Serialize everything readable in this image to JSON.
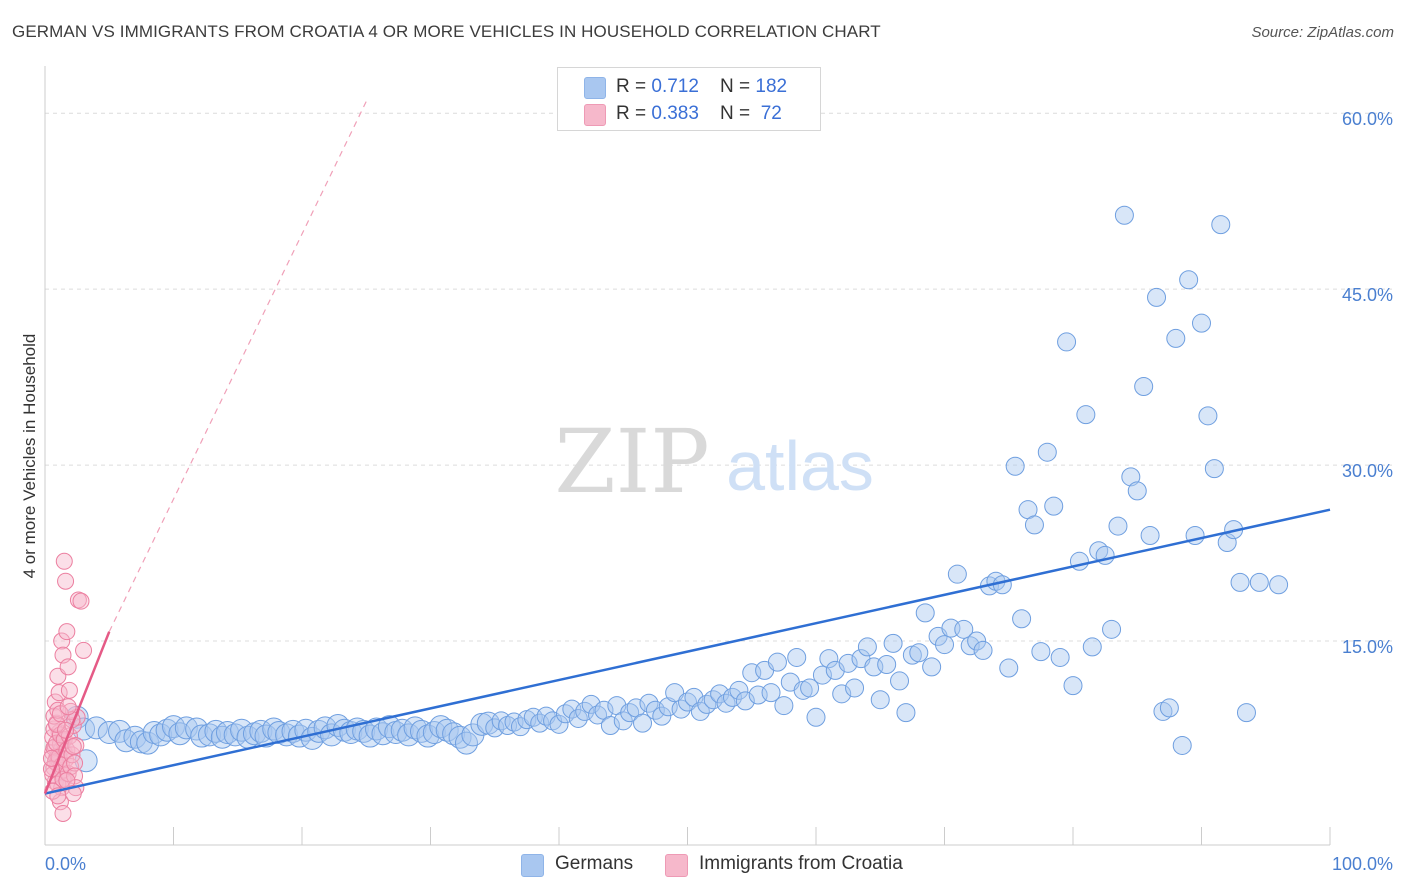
{
  "title": "GERMAN VS IMMIGRANTS FROM CROATIA 4 OR MORE VEHICLES IN HOUSEHOLD CORRELATION CHART",
  "source": "Source: ZipAtlas.com",
  "watermark": {
    "zip": "ZIP",
    "atlas": "atlas"
  },
  "legend": {
    "rows": [
      {
        "r_label": "R = ",
        "r_value": "0.712",
        "n_label": "N = ",
        "n_value": "182",
        "color": "#a9c7f0"
      },
      {
        "r_label": "R = ",
        "r_value": "0.383",
        "n_label": "N = ",
        "n_value": " 72",
        "color": "#f6b8cb"
      }
    ]
  },
  "bottom_legend": [
    {
      "label": "Germans",
      "color": "#a9c7f0"
    },
    {
      "label": "Immigrants from Croatia",
      "color": "#f6b8cb"
    }
  ],
  "chart_data": {
    "type": "scatter",
    "ylabel": "4 or more Vehicles in Household",
    "xlim": [
      0,
      100
    ],
    "ylim": [
      0,
      63
    ],
    "x_tick_labels": [
      {
        "value": 0,
        "label": "0.0%"
      },
      {
        "value": 100,
        "label": "100.0%"
      }
    ],
    "y_tick_labels": [
      {
        "value": 15,
        "label": "15.0%"
      },
      {
        "value": 30,
        "label": "30.0%"
      },
      {
        "value": 45,
        "label": "45.0%"
      },
      {
        "value": 60,
        "label": "60.0%"
      }
    ],
    "grid": "horizontal dashed",
    "legend_position": "top-center",
    "series": [
      {
        "name": "Germans",
        "color": "#a9c7f0",
        "stroke": "#6f9fe0",
        "trend": {
          "x": [
            0,
            100
          ],
          "y": [
            2.0,
            26.2
          ],
          "color": "#2f6fd3"
        },
        "points": [
          [
            2.5,
            8.5
          ],
          [
            3,
            7.5
          ],
          [
            3.2,
            4.8
          ],
          [
            4,
            7.6
          ],
          [
            5,
            7.2
          ],
          [
            5.8,
            7.3
          ],
          [
            6.3,
            6.5
          ],
          [
            7,
            6.8
          ],
          [
            7.5,
            6.4
          ],
          [
            8,
            6.3
          ],
          [
            8.5,
            7.2
          ],
          [
            9,
            7.0
          ],
          [
            9.5,
            7.4
          ],
          [
            10,
            7.7
          ],
          [
            10.5,
            7.1
          ],
          [
            11,
            7.6
          ],
          [
            11.8,
            7.5
          ],
          [
            12.2,
            6.9
          ],
          [
            12.8,
            7.0
          ],
          [
            13.3,
            7.3
          ],
          [
            13.8,
            6.8
          ],
          [
            14.2,
            7.2
          ],
          [
            14.8,
            7.0
          ],
          [
            15.3,
            7.4
          ],
          [
            15.8,
            6.8
          ],
          [
            16.3,
            7.1
          ],
          [
            16.8,
            7.3
          ],
          [
            17.2,
            6.9
          ],
          [
            17.8,
            7.5
          ],
          [
            18.2,
            7.2
          ],
          [
            18.8,
            7.0
          ],
          [
            19.3,
            7.3
          ],
          [
            19.8,
            6.9
          ],
          [
            20.3,
            7.4
          ],
          [
            20.8,
            6.7
          ],
          [
            21.3,
            7.3
          ],
          [
            21.8,
            7.6
          ],
          [
            22.3,
            7.0
          ],
          [
            22.8,
            7.8
          ],
          [
            23.3,
            7.4
          ],
          [
            23.8,
            7.2
          ],
          [
            24.3,
            7.5
          ],
          [
            24.8,
            7.3
          ],
          [
            25.3,
            6.9
          ],
          [
            25.8,
            7.5
          ],
          [
            26.3,
            7.1
          ],
          [
            26.8,
            7.7
          ],
          [
            27.3,
            7.2
          ],
          [
            27.8,
            7.4
          ],
          [
            28.3,
            7.0
          ],
          [
            28.8,
            7.6
          ],
          [
            29.3,
            7.3
          ],
          [
            29.8,
            6.9
          ],
          [
            30.3,
            7.2
          ],
          [
            30.8,
            7.7
          ],
          [
            31.3,
            7.4
          ],
          [
            31.8,
            7.1
          ],
          [
            32.3,
            6.8
          ],
          [
            32.8,
            6.3
          ],
          [
            33.3,
            7.0
          ],
          [
            34.0,
            7.9
          ],
          [
            34.5,
            8.0
          ],
          [
            35.0,
            7.6
          ],
          [
            35.5,
            8.2
          ],
          [
            36.0,
            7.8
          ],
          [
            36.5,
            8.1
          ],
          [
            37.0,
            7.7
          ],
          [
            37.5,
            8.3
          ],
          [
            38.0,
            8.5
          ],
          [
            38.5,
            8.0
          ],
          [
            39.0,
            8.6
          ],
          [
            39.5,
            8.2
          ],
          [
            40.0,
            7.9
          ],
          [
            40.5,
            8.8
          ],
          [
            41.0,
            9.2
          ],
          [
            41.5,
            8.4
          ],
          [
            42.0,
            9.0
          ],
          [
            42.5,
            9.6
          ],
          [
            43.0,
            8.7
          ],
          [
            43.5,
            9.1
          ],
          [
            44.0,
            7.8
          ],
          [
            44.5,
            9.5
          ],
          [
            45.0,
            8.2
          ],
          [
            45.5,
            8.9
          ],
          [
            46.0,
            9.3
          ],
          [
            46.5,
            8.0
          ],
          [
            47.0,
            9.7
          ],
          [
            47.5,
            9.1
          ],
          [
            48.0,
            8.6
          ],
          [
            48.5,
            9.4
          ],
          [
            49.0,
            10.6
          ],
          [
            49.5,
            9.2
          ],
          [
            50.0,
            9.8
          ],
          [
            50.5,
            10.2
          ],
          [
            51.0,
            9.0
          ],
          [
            51.5,
            9.6
          ],
          [
            52.0,
            10.0
          ],
          [
            52.5,
            10.5
          ],
          [
            53.0,
            9.7
          ],
          [
            53.5,
            10.2
          ],
          [
            54.0,
            10.8
          ],
          [
            54.5,
            9.9
          ],
          [
            55.0,
            12.3
          ],
          [
            55.5,
            10.4
          ],
          [
            56.0,
            12.5
          ],
          [
            56.5,
            10.6
          ],
          [
            57.0,
            13.2
          ],
          [
            57.5,
            9.5
          ],
          [
            58.0,
            11.5
          ],
          [
            58.5,
            13.6
          ],
          [
            59.0,
            10.8
          ],
          [
            59.5,
            11.0
          ],
          [
            60.0,
            8.5
          ],
          [
            60.5,
            12.1
          ],
          [
            61.0,
            13.5
          ],
          [
            61.5,
            12.5
          ],
          [
            62.0,
            10.5
          ],
          [
            62.5,
            13.1
          ],
          [
            63.0,
            11.0
          ],
          [
            63.5,
            13.5
          ],
          [
            64.0,
            14.5
          ],
          [
            64.5,
            12.8
          ],
          [
            65.0,
            10.0
          ],
          [
            65.5,
            13.0
          ],
          [
            66.0,
            14.8
          ],
          [
            66.5,
            11.6
          ],
          [
            67.0,
            8.9
          ],
          [
            67.5,
            13.8
          ],
          [
            68.0,
            14.0
          ],
          [
            68.5,
            17.4
          ],
          [
            69.0,
            12.8
          ],
          [
            69.5,
            15.4
          ],
          [
            70.0,
            14.7
          ],
          [
            70.5,
            16.1
          ],
          [
            71.0,
            20.7
          ],
          [
            71.5,
            16.0
          ],
          [
            72.0,
            14.6
          ],
          [
            72.5,
            15.0
          ],
          [
            73.0,
            14.2
          ],
          [
            73.5,
            19.7
          ],
          [
            74.0,
            20.1
          ],
          [
            74.5,
            19.8
          ],
          [
            75.0,
            12.7
          ],
          [
            75.5,
            29.9
          ],
          [
            76.0,
            16.9
          ],
          [
            76.5,
            26.2
          ],
          [
            77.0,
            24.9
          ],
          [
            77.5,
            14.1
          ],
          [
            78.0,
            31.1
          ],
          [
            78.5,
            26.5
          ],
          [
            79.0,
            13.6
          ],
          [
            79.5,
            40.5
          ],
          [
            80.0,
            11.2
          ],
          [
            80.5,
            21.8
          ],
          [
            81.0,
            34.3
          ],
          [
            81.5,
            14.5
          ],
          [
            82.0,
            22.7
          ],
          [
            82.5,
            22.3
          ],
          [
            83.0,
            16.0
          ],
          [
            83.5,
            24.8
          ],
          [
            84.0,
            51.3
          ],
          [
            84.5,
            29.0
          ],
          [
            85.0,
            27.8
          ],
          [
            85.5,
            36.7
          ],
          [
            86.0,
            24.0
          ],
          [
            86.5,
            44.3
          ],
          [
            87.0,
            9.0
          ],
          [
            87.5,
            9.3
          ],
          [
            88.0,
            40.8
          ],
          [
            88.5,
            6.1
          ],
          [
            89.0,
            45.8
          ],
          [
            89.5,
            24.0
          ],
          [
            90.0,
            42.1
          ],
          [
            90.5,
            34.2
          ],
          [
            91.0,
            29.7
          ],
          [
            91.5,
            50.5
          ],
          [
            92.0,
            23.4
          ],
          [
            92.5,
            24.5
          ],
          [
            93.0,
            20.0
          ],
          [
            93.5,
            8.9
          ],
          [
            94.5,
            20.0
          ],
          [
            96.0,
            19.8
          ]
        ]
      },
      {
        "name": "Immigrants from Croatia",
        "color": "#f6b8cb",
        "stroke": "#ec7fa0",
        "trend": {
          "x": [
            0,
            5
          ],
          "y": [
            2.0,
            15.8
          ],
          "color": "#e55a86"
        },
        "trend_dashed": {
          "x": [
            5,
            25
          ],
          "y": [
            15.8,
            61.0
          ]
        },
        "points": [
          [
            0.6,
            5.5
          ],
          [
            0.7,
            4.2
          ],
          [
            0.8,
            6.0
          ],
          [
            0.9,
            5.0
          ],
          [
            1.0,
            4.5
          ],
          [
            1.1,
            7.2
          ],
          [
            1.2,
            3.8
          ],
          [
            1.3,
            5.8
          ],
          [
            1.4,
            6.5
          ],
          [
            1.5,
            3.3
          ],
          [
            0.6,
            6.8
          ],
          [
            0.7,
            7.5
          ],
          [
            0.8,
            3.0
          ],
          [
            0.9,
            8.0
          ],
          [
            1.0,
            5.2
          ],
          [
            1.1,
            4.8
          ],
          [
            1.2,
            6.2
          ],
          [
            1.3,
            2.5
          ],
          [
            1.4,
            4.0
          ],
          [
            1.5,
            5.5
          ],
          [
            0.6,
            3.6
          ],
          [
            0.7,
            5.9
          ],
          [
            0.8,
            4.7
          ],
          [
            0.9,
            6.3
          ],
          [
            1.0,
            2.8
          ],
          [
            1.1,
            5.1
          ],
          [
            1.2,
            7.0
          ],
          [
            1.3,
            4.4
          ],
          [
            1.4,
            3.2
          ],
          [
            1.5,
            6.6
          ],
          [
            1.6,
            4.9
          ],
          [
            1.7,
            5.7
          ],
          [
            1.8,
            3.7
          ],
          [
            1.9,
            6.9
          ],
          [
            2.0,
            4.3
          ],
          [
            2.1,
            5.3
          ],
          [
            2.2,
            7.8
          ],
          [
            2.3,
            4.6
          ],
          [
            2.4,
            6.1
          ],
          [
            2.5,
            8.5
          ],
          [
            0.8,
            9.8
          ],
          [
            1.0,
            12.0
          ],
          [
            1.1,
            10.6
          ],
          [
            1.3,
            15.0
          ],
          [
            1.4,
            13.8
          ],
          [
            1.5,
            21.8
          ],
          [
            1.6,
            20.1
          ],
          [
            1.7,
            15.8
          ],
          [
            1.8,
            12.8
          ],
          [
            1.9,
            10.8
          ],
          [
            2.0,
            9.0
          ],
          [
            2.1,
            8.3
          ],
          [
            2.2,
            6.0
          ],
          [
            2.3,
            3.5
          ],
          [
            2.4,
            2.5
          ],
          [
            2.6,
            18.5
          ],
          [
            2.8,
            18.4
          ],
          [
            3.0,
            14.2
          ],
          [
            1.2,
            1.3
          ],
          [
            1.4,
            0.3
          ],
          [
            0.7,
            8.6
          ],
          [
            0.9,
            7.9
          ],
          [
            1.0,
            9.1
          ],
          [
            1.2,
            8.8
          ],
          [
            1.6,
            7.4
          ],
          [
            1.8,
            9.4
          ],
          [
            0.5,
            4.1
          ],
          [
            0.5,
            5.0
          ],
          [
            0.6,
            2.2
          ],
          [
            1.0,
            1.8
          ],
          [
            1.7,
            3.1
          ],
          [
            2.2,
            2.0
          ]
        ]
      }
    ]
  }
}
